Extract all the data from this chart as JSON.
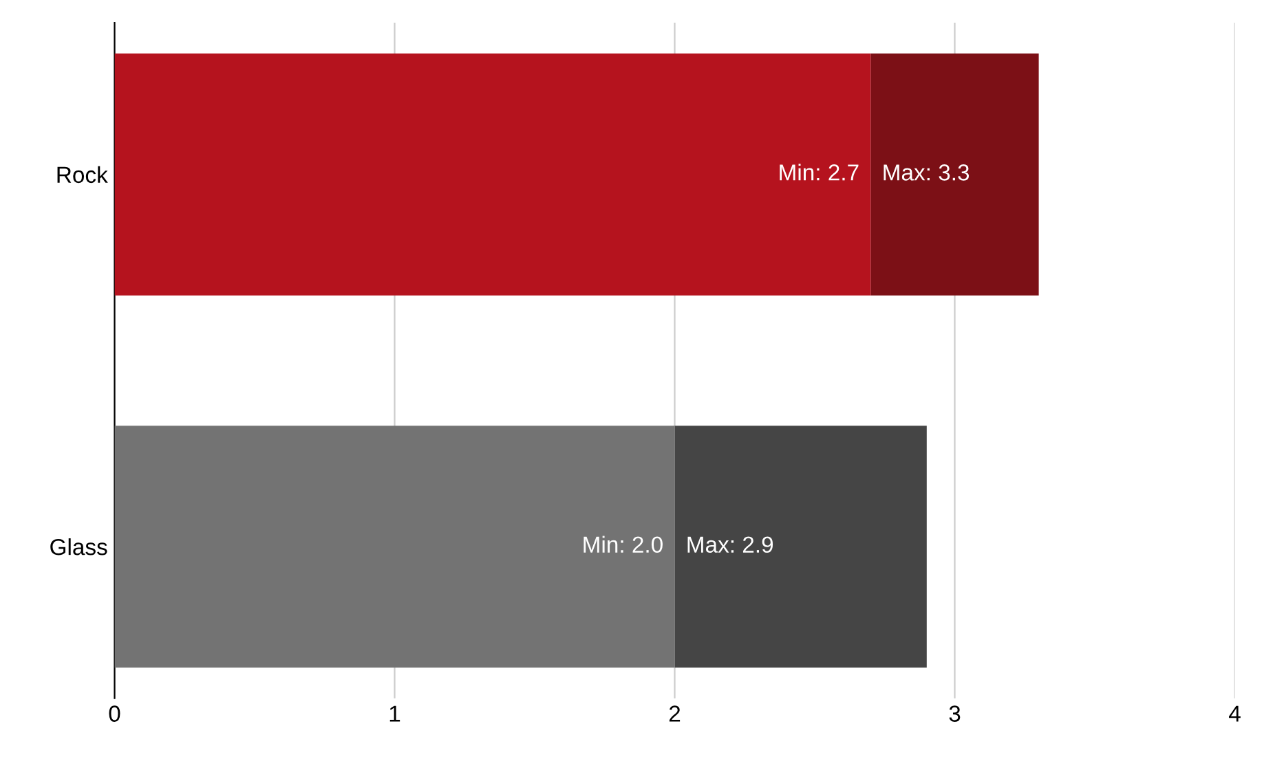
{
  "chart_data": {
    "type": "bar",
    "orientation": "horizontal",
    "stacked": true,
    "categories": [
      "Rock",
      "Glass"
    ],
    "series": [
      {
        "colors": [
          "#b5131e",
          "#737373"
        ],
        "values": [
          2.7,
          2.0
        ],
        "value_labels": [
          "Min: 2.7",
          "Min: 2.0"
        ]
      },
      {
        "colors": [
          "#7c1016",
          "#454545"
        ],
        "values": [
          0.6,
          0.9
        ]
      }
    ],
    "totals": [
      "Max: 3.3",
      "Max: 2.9"
    ],
    "xlim": [
      0,
      4
    ],
    "xticks": [
      0,
      1,
      2,
      3,
      4
    ],
    "grid": "x",
    "legend": false
  }
}
